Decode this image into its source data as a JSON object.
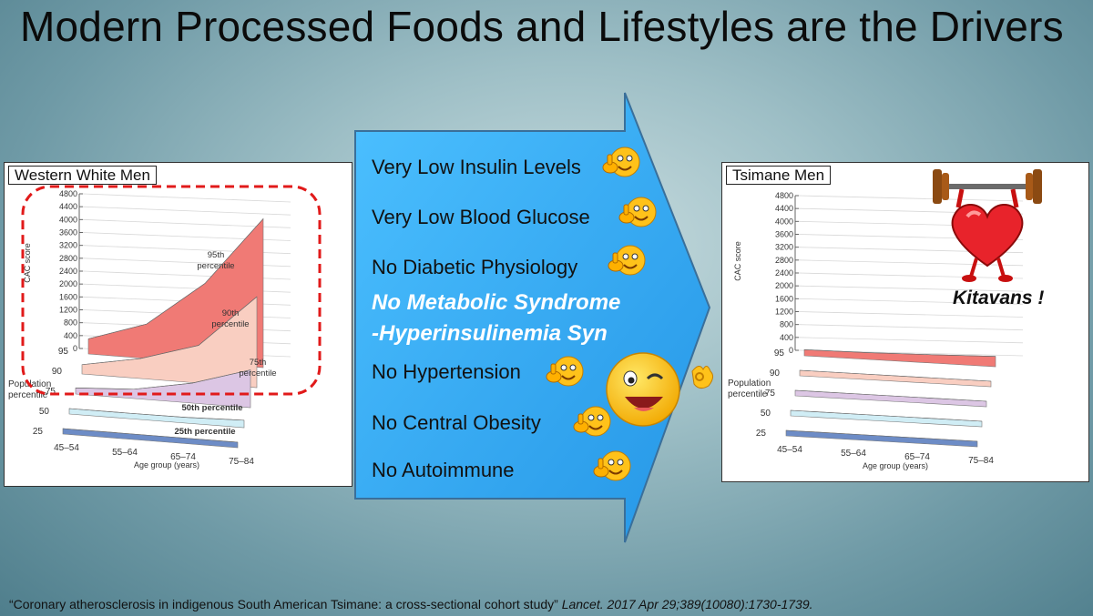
{
  "title": "Modern Processed Foods and Lifestyles are the Drivers",
  "benefits": [
    "Very Low Insulin Levels",
    "Very Low Blood Glucose",
    "No Diabetic Physiology",
    "No Metabolic Syndrome",
    "-Hyperinsulinemia Syn",
    "No Hypertension",
    "No Central Obesity",
    "No Autoimmune"
  ],
  "kitavans_label": "Kitavans !",
  "citation": {
    "text": "“Coronary atherosclerosis in indigenous South American Tsimane: a cross-sectional cohort study”",
    "source": "Lancet. 2017 Apr 29;389(10080):1730-1739."
  },
  "colors": {
    "p95": "#e8322b",
    "p90": "#f5b3a0",
    "p75": "#c9a8d6",
    "p50": "#b6e3ef",
    "p25": "#1f4ea8",
    "arrow": "#2fa9ee",
    "highlight": "#e11a1a"
  },
  "chart_data": [
    {
      "type": "area",
      "title": "Western White Men",
      "ylabel": "CAC score",
      "xlabel": "Age group (years)",
      "zlabel": "Population percentile",
      "ylim": [
        0,
        4800
      ],
      "yticks": [
        "4800",
        "4400",
        "4000",
        "3600",
        "3200",
        "2800",
        "2400",
        "2000",
        "1600",
        "1200",
        "800",
        "400",
        "0"
      ],
      "categories": [
        "45–54",
        "55–64",
        "65–74",
        "75–84"
      ],
      "series": [
        {
          "name": "95th percentile",
          "short": "95",
          "values": [
            300,
            900,
            2300,
            4450
          ]
        },
        {
          "name": "90th percentile",
          "short": "90",
          "values": [
            120,
            450,
            1000,
            2650
          ]
        },
        {
          "name": "75th percentile",
          "short": "75",
          "values": [
            20,
            120,
            450,
            1000
          ]
        },
        {
          "name": "50th percentile",
          "short": "50",
          "values": [
            0,
            0,
            10,
            60
          ]
        },
        {
          "name": "25th percentile",
          "short": "25",
          "values": [
            0,
            0,
            0,
            0
          ]
        }
      ],
      "annotations": [
        "95th percentile",
        "90th percentile",
        "75th percentile",
        "50th percentile",
        "25th percentile"
      ]
    },
    {
      "type": "area",
      "title": "Tsimane Men",
      "ylabel": "CAC score",
      "xlabel": "Age group (years)",
      "zlabel": "Population percentile",
      "ylim": [
        0,
        4800
      ],
      "yticks": [
        "4800",
        "4400",
        "4000",
        "3600",
        "3200",
        "2800",
        "2400",
        "2000",
        "1600",
        "1200",
        "800",
        "400",
        "0"
      ],
      "categories": [
        "45–54",
        "55–64",
        "65–74",
        "75–84"
      ],
      "series": [
        {
          "short": "95",
          "values": [
            20,
            40,
            90,
            150
          ]
        },
        {
          "short": "90",
          "values": [
            0,
            0,
            0,
            0
          ]
        },
        {
          "short": "75",
          "values": [
            0,
            0,
            0,
            0
          ]
        },
        {
          "short": "50",
          "values": [
            0,
            0,
            0,
            0
          ]
        },
        {
          "short": "25",
          "values": [
            0,
            0,
            0,
            0
          ]
        }
      ]
    }
  ]
}
